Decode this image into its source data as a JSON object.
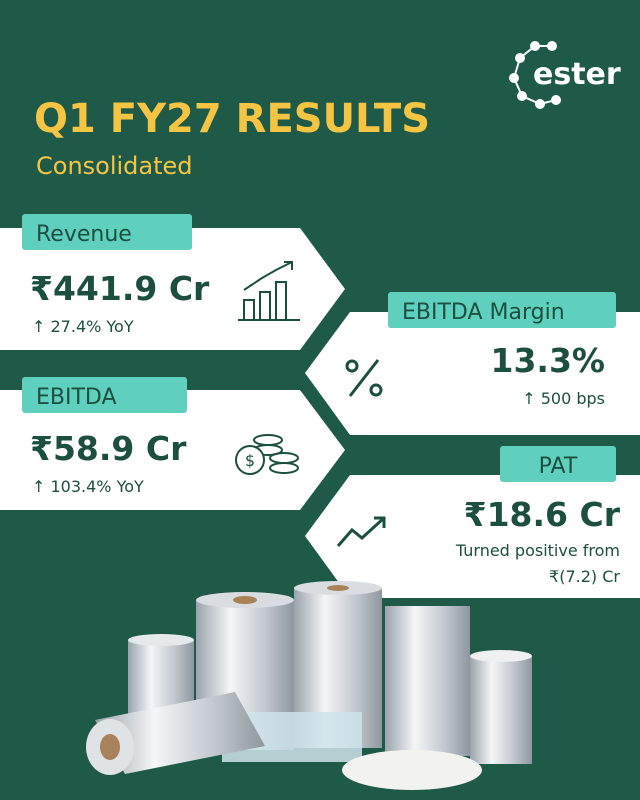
{
  "logo": "ester",
  "header": {
    "title": "Q1 FY27 RESULTS",
    "subtitle": "Consolidated"
  },
  "cards": [
    {
      "label": "Revenue",
      "value": "₹441.9 Cr",
      "change": [
        "↑ 27.4% YoY"
      ]
    },
    {
      "label": "EBITDA Margin",
      "value": "13.3%",
      "change": [
        "↑ 500 bps"
      ]
    },
    {
      "label": "EBITDA",
      "value": "₹58.9 Cr",
      "change": [
        "↑ 103.4% YoY"
      ]
    },
    {
      "label": "PAT",
      "value": "₹18.6 Cr",
      "change": [
        "Turned positive from",
        "₹(7.2) Cr"
      ]
    }
  ]
}
